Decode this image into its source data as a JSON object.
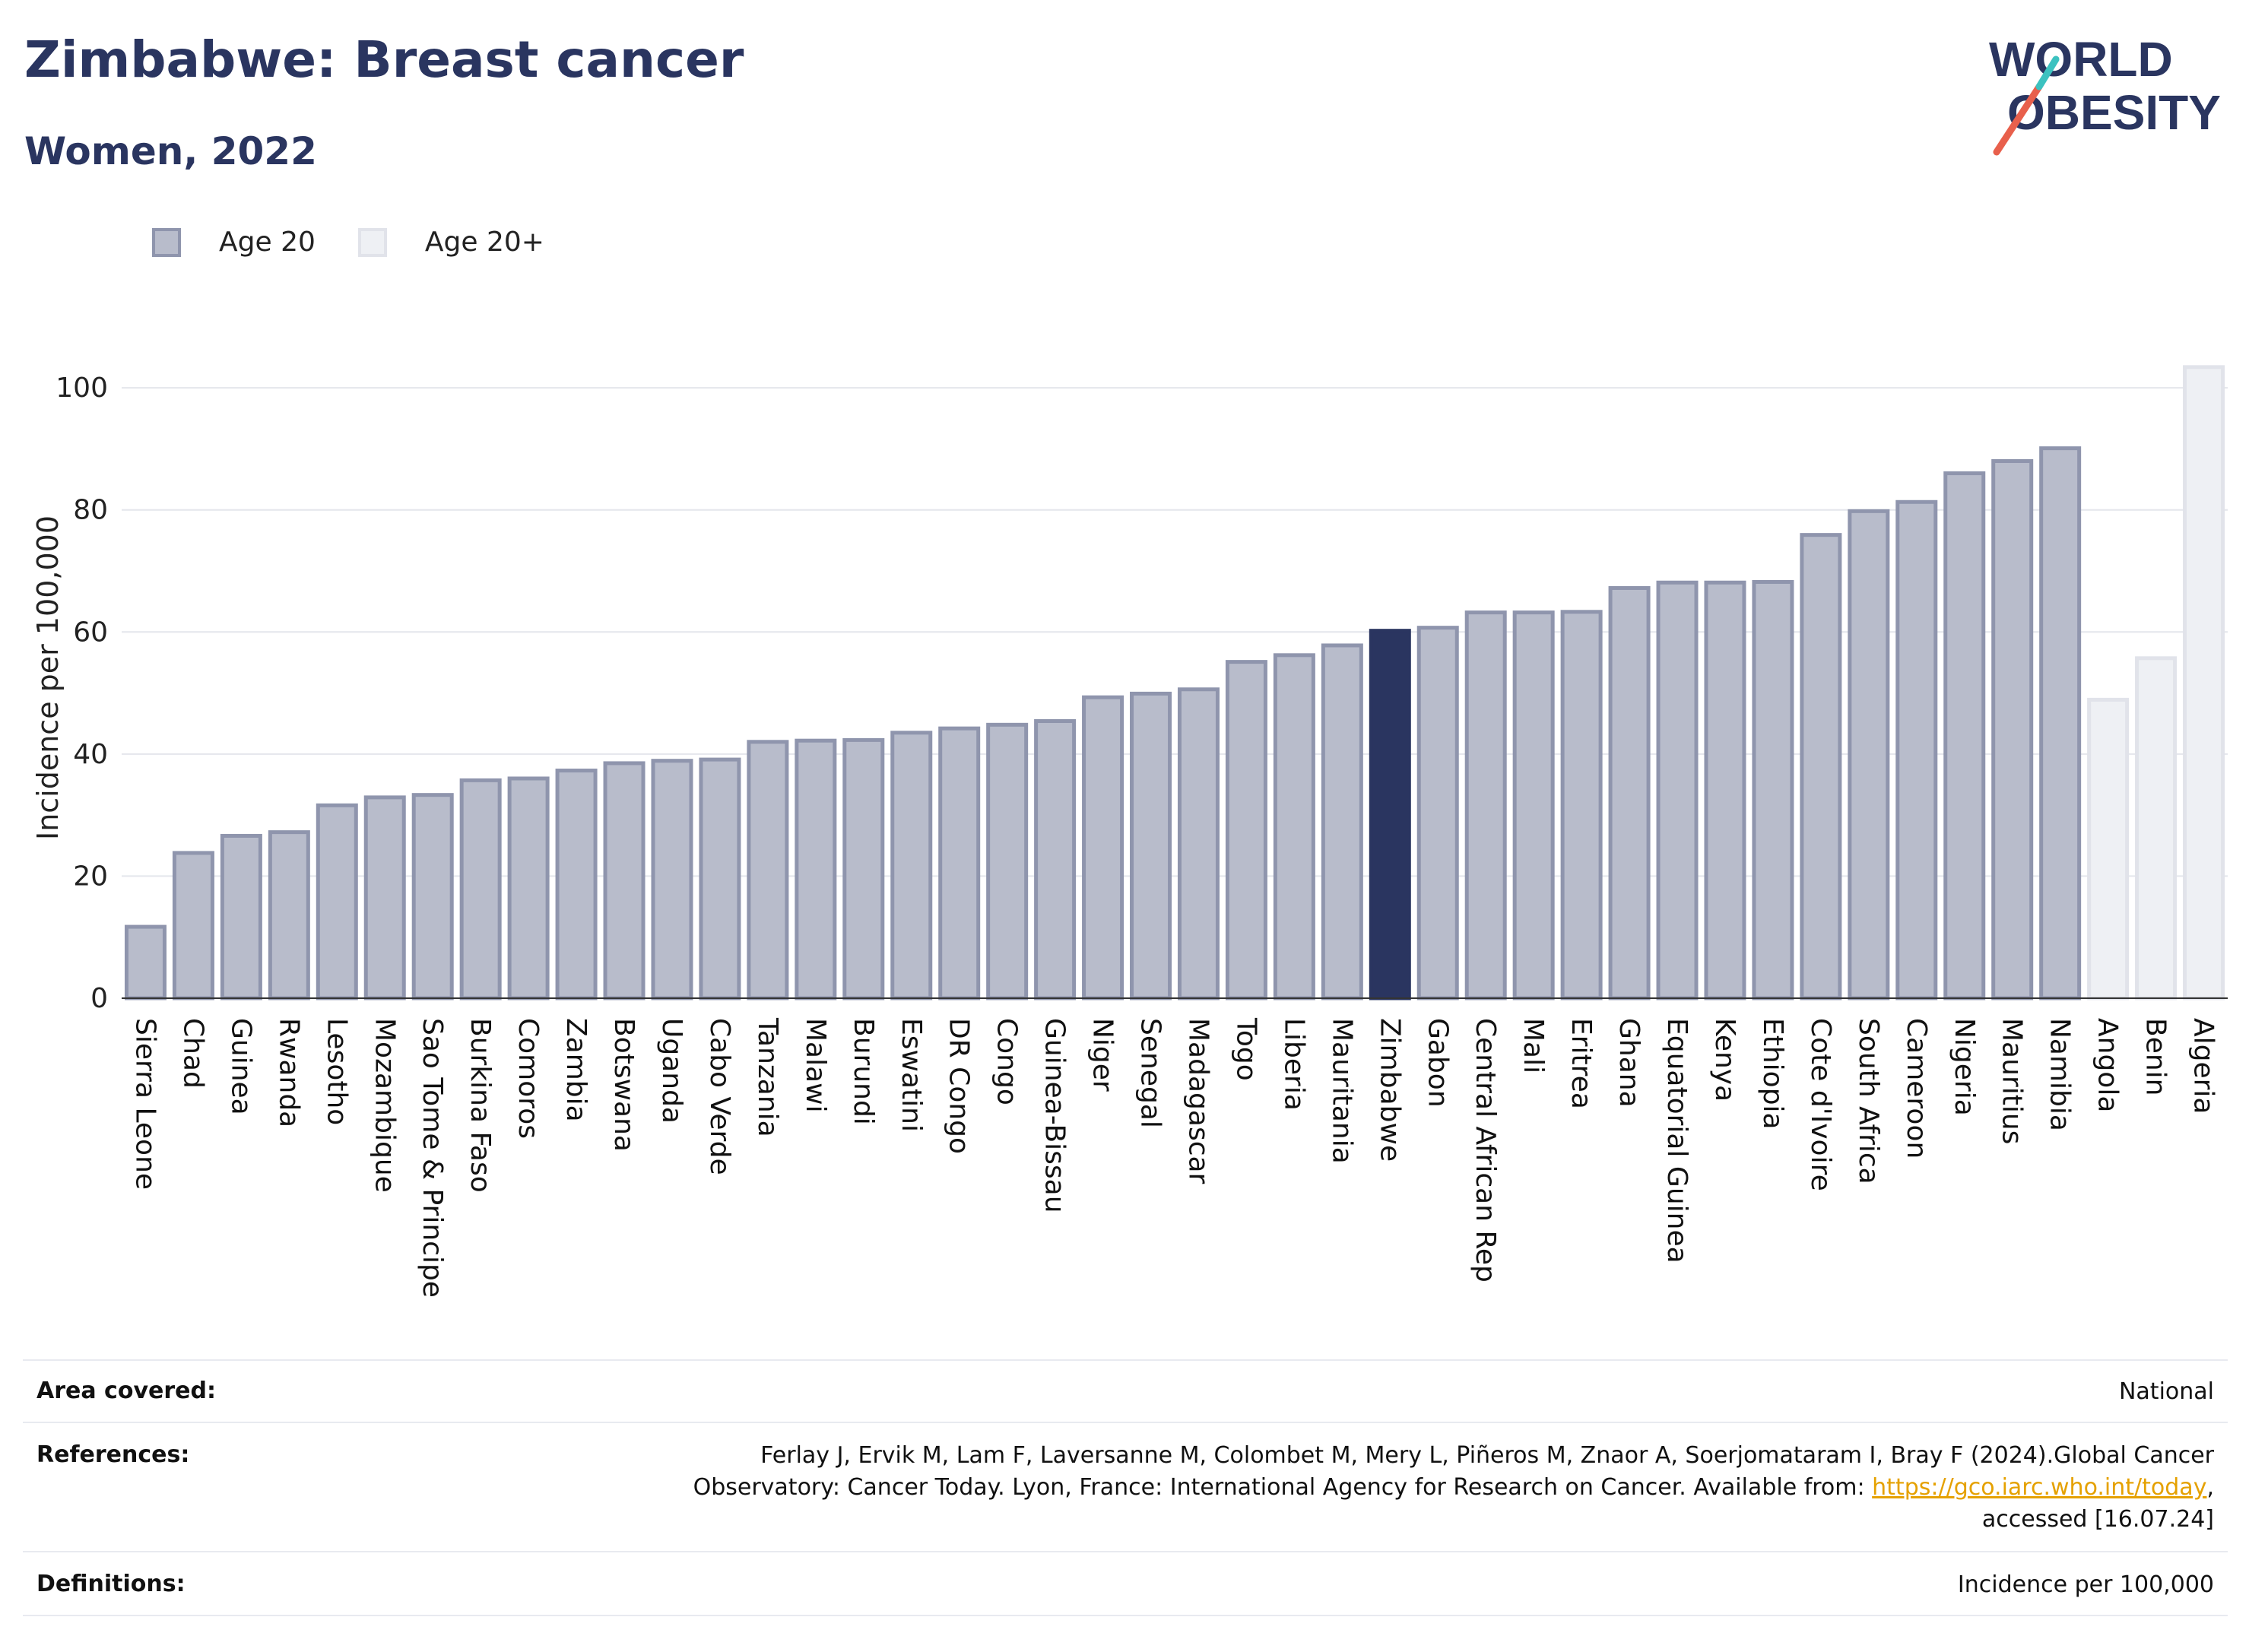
{
  "header": {
    "title": "Zimbabwe: Breast cancer",
    "subtitle": "Women, 2022"
  },
  "logo": {
    "line1": "WORLD",
    "line2": "OBESITY",
    "accent_colors": [
      "#e8604c",
      "#3cc2c0"
    ]
  },
  "legend": [
    {
      "label": "Age 20",
      "color": "#b8bccb"
    },
    {
      "label": "Age 20+",
      "color": "#eef0f4"
    }
  ],
  "colors": {
    "highlight": "#2a3560",
    "age20": "#b8bccb",
    "age20_border": "#8f95ad",
    "age20plus": "#eef0f4",
    "age20plus_border": "#e1e3ea"
  },
  "chart_data": {
    "type": "bar",
    "title": "",
    "xlabel": "",
    "ylabel": "Incidence per 100,000",
    "ylim": [
      0,
      105
    ],
    "yticks": [
      0,
      20,
      40,
      60,
      80,
      100
    ],
    "grid": true,
    "legend_position": "top-left",
    "highlight": "Zimbabwe",
    "categories": [
      "Sierra Leone",
      "Chad",
      "Guinea",
      "Rwanda",
      "Lesotho",
      "Mozambique",
      "Sao Tome & Principe",
      "Burkina Faso",
      "Comoros",
      "Zambia",
      "Botswana",
      "Uganda",
      "Cabo Verde",
      "Tanzania",
      "Malawi",
      "Burundi",
      "Eswatini",
      "DR Congo",
      "Congo",
      "Guinea-Bissau",
      "Niger",
      "Senegal",
      "Madagascar",
      "Togo",
      "Liberia",
      "Mauritania",
      "Zimbabwe",
      "Gabon",
      "Central African Rep",
      "Mali",
      "Eritrea",
      "Ghana",
      "Equatorial Guinea",
      "Kenya",
      "Ethiopia",
      "Cote d'Ivoire",
      "South Africa",
      "Cameroon",
      "Nigeria",
      "Mauritius",
      "Namibia",
      "Angola",
      "Benin",
      "Algeria"
    ],
    "values": [
      11.7,
      23.8,
      26.6,
      27.2,
      31.6,
      32.9,
      33.3,
      35.7,
      36.0,
      37.3,
      38.5,
      38.9,
      39.1,
      42.0,
      42.2,
      42.3,
      43.5,
      44.2,
      44.8,
      45.4,
      49.3,
      49.9,
      50.6,
      55.1,
      56.2,
      57.8,
      60.2,
      60.7,
      63.2,
      63.2,
      63.3,
      67.2,
      68.1,
      68.1,
      68.2,
      75.9,
      79.8,
      81.3,
      86.0,
      88.0,
      90.1,
      48.9,
      55.7,
      103.4
    ],
    "series_group": [
      "Age 20",
      "Age 20",
      "Age 20",
      "Age 20",
      "Age 20",
      "Age 20",
      "Age 20",
      "Age 20",
      "Age 20",
      "Age 20",
      "Age 20",
      "Age 20",
      "Age 20",
      "Age 20",
      "Age 20",
      "Age 20",
      "Age 20",
      "Age 20",
      "Age 20",
      "Age 20",
      "Age 20",
      "Age 20",
      "Age 20",
      "Age 20",
      "Age 20",
      "Age 20",
      "Age 20",
      "Age 20",
      "Age 20",
      "Age 20",
      "Age 20",
      "Age 20",
      "Age 20",
      "Age 20",
      "Age 20",
      "Age 20",
      "Age 20",
      "Age 20",
      "Age 20",
      "Age 20",
      "Age 20",
      "Age 20+",
      "Age 20+",
      "Age 20+"
    ]
  },
  "footer": {
    "area_label": "Area covered:",
    "area_value": "National",
    "references_label": "References:",
    "references_line1": "Ferlay J, Ervik M, Lam F, Laversanne M, Colombet M, Mery L, Piñeros M, Znaor A, Soerjomataram I, Bray F (2024).Global Cancer",
    "references_line2_pre": "Observatory: Cancer Today. Lyon, France: International Agency for Research on Cancer. Available from: ",
    "references_link": "https://gco.iarc.who.int/today",
    "references_line2_post": ",",
    "references_line3": "accessed [16.07.24]",
    "definitions_label": "Definitions:",
    "definitions_value": "Incidence per 100,000"
  }
}
